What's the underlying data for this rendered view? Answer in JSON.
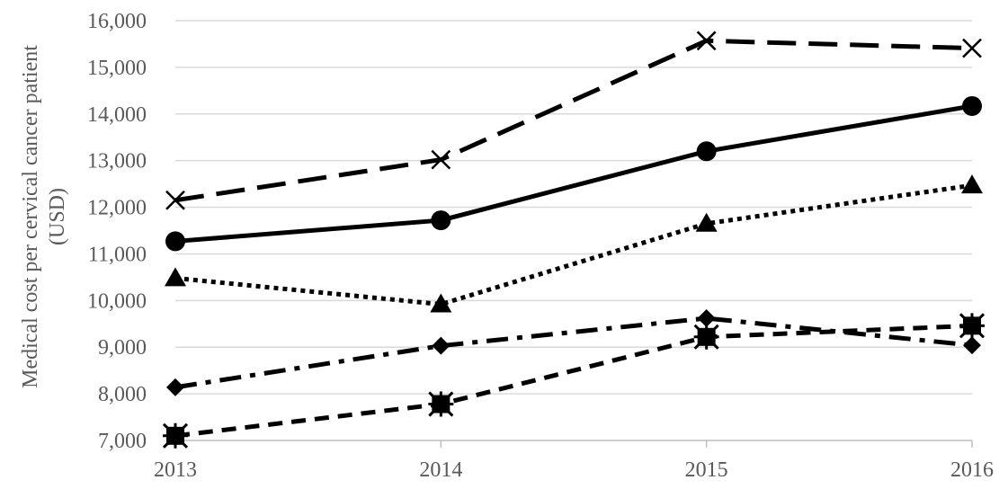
{
  "chart_data": {
    "type": "line",
    "title": "",
    "xlabel": "",
    "ylabel_line1": "Medical cost per cervical cancer patient",
    "ylabel_line2": "(USD)",
    "categories": [
      "2013",
      "2014",
      "2015",
      "2016"
    ],
    "ylim": [
      7000,
      16000
    ],
    "yticks": [
      7000,
      8000,
      9000,
      10000,
      11000,
      12000,
      13000,
      14000,
      15000,
      16000
    ],
    "ytick_labels": [
      "7,000",
      "8,000",
      "9,000",
      "10,000",
      "11,000",
      "12,000",
      "13,000",
      "14,000",
      "15,000",
      "16,000"
    ],
    "grid": true,
    "series": [
      {
        "values": [
          12150,
          13020,
          15570,
          15410
        ],
        "marker": "x",
        "dash": "long-dash",
        "color": "#000000"
      },
      {
        "values": [
          11270,
          11720,
          13200,
          14170
        ],
        "marker": "circle",
        "dash": "solid",
        "color": "#000000"
      },
      {
        "values": [
          10480,
          9920,
          11650,
          12470
        ],
        "marker": "triangle",
        "dash": "dotted",
        "color": "#000000"
      },
      {
        "values": [
          8140,
          9030,
          9620,
          9040
        ],
        "marker": "diamond",
        "dash": "dash-dot",
        "color": "#000000"
      },
      {
        "values": [
          7100,
          7780,
          9220,
          9460
        ],
        "marker": "square-star",
        "dash": "dashed",
        "color": "#000000"
      }
    ]
  }
}
